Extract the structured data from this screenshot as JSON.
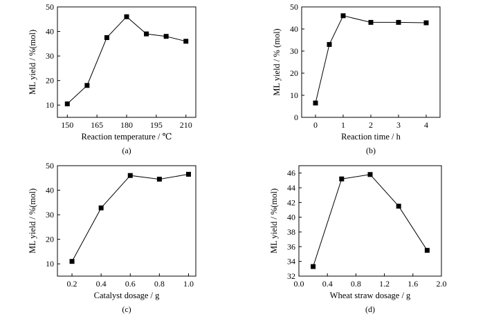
{
  "chart_data": [
    {
      "type": "line",
      "panel_label": "(a)",
      "title": "",
      "xlabel": "Reaction temperature / ℃",
      "ylabel": "ML yield / %(mol)",
      "xlim": [
        145,
        215
      ],
      "ylim": [
        5,
        50
      ],
      "xticks": [
        150,
        165,
        180,
        195,
        210
      ],
      "xtick_labels": [
        "150",
        "165",
        "180",
        "195",
        "210"
      ],
      "yticks": [
        10,
        20,
        30,
        40,
        50
      ],
      "ytick_labels": [
        "10",
        "20",
        "30",
        "40",
        "50"
      ],
      "series": [
        {
          "name": "ML yield",
          "marker": "square",
          "x": [
            150,
            160,
            170,
            180,
            190,
            200,
            210
          ],
          "y": [
            10.5,
            18,
            37.5,
            46,
            39,
            38,
            36
          ]
        }
      ]
    },
    {
      "type": "line",
      "panel_label": "(b)",
      "title": "",
      "xlabel": "Reaction time / h",
      "ylabel": "ML yield / % (mol)",
      "xlim": [
        -0.5,
        4.5
      ],
      "ylim": [
        0,
        50
      ],
      "xticks": [
        0,
        1,
        2,
        3,
        4
      ],
      "xtick_labels": [
        "0",
        "1",
        "2",
        "3",
        "4"
      ],
      "yticks": [
        0,
        10,
        20,
        30,
        40,
        50
      ],
      "ytick_labels": [
        "0",
        "10",
        "20",
        "30",
        "40",
        "50"
      ],
      "series": [
        {
          "name": "ML yield",
          "marker": "square",
          "x": [
            0,
            0.5,
            1,
            2,
            3,
            4
          ],
          "y": [
            6.5,
            33,
            46,
            43,
            43,
            42.8
          ]
        }
      ]
    },
    {
      "type": "line",
      "panel_label": "(c)",
      "title": "",
      "xlabel": "Catalyst dosage / g",
      "ylabel": "ML yield / %(mol)",
      "xlim": [
        0.1,
        1.05
      ],
      "ylim": [
        5,
        50
      ],
      "xticks": [
        0.2,
        0.4,
        0.6,
        0.8,
        1.0
      ],
      "xtick_labels": [
        "0.2",
        "0.4",
        "0.6",
        "0.8",
        "1.0"
      ],
      "yticks": [
        10,
        20,
        30,
        40,
        50
      ],
      "ytick_labels": [
        "10",
        "20",
        "30",
        "40",
        "50"
      ],
      "series": [
        {
          "name": "ML yield",
          "marker": "square",
          "x": [
            0.2,
            0.4,
            0.6,
            0.8,
            1.0
          ],
          "y": [
            11,
            32.8,
            46,
            44.5,
            46.5
          ]
        }
      ]
    },
    {
      "type": "line",
      "panel_label": "(d)",
      "title": "",
      "xlabel": "Wheat straw dosage / g",
      "ylabel": "ML yield / %(mol)",
      "xlim": [
        0.0,
        2.0
      ],
      "ylim": [
        32,
        47
      ],
      "xticks": [
        0.0,
        0.4,
        0.8,
        1.2,
        1.6,
        2.0
      ],
      "xtick_labels": [
        "0.0",
        "0.4",
        "0.8",
        "1.2",
        "1.6",
        "2.0"
      ],
      "yticks": [
        32,
        34,
        36,
        38,
        40,
        42,
        44,
        46
      ],
      "ytick_labels": [
        "32",
        "34",
        "36",
        "38",
        "40",
        "42",
        "44",
        "46"
      ],
      "series": [
        {
          "name": "ML yield",
          "marker": "square",
          "x": [
            0.2,
            0.6,
            1.0,
            1.4,
            1.8
          ],
          "y": [
            33.3,
            45.2,
            45.8,
            41.5,
            35.5
          ]
        }
      ]
    }
  ]
}
